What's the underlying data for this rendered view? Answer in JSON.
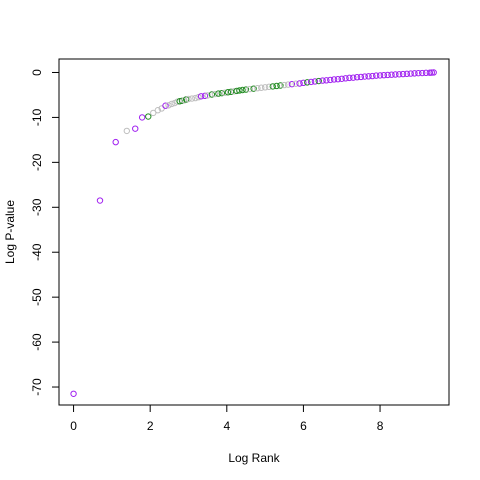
{
  "chart_data": {
    "type": "scatter",
    "title": "",
    "xlabel": "Log Rank",
    "ylabel": "Log P-value",
    "xlim": [
      -0.38,
      9.8
    ],
    "ylim": [
      -74,
      3
    ],
    "x_ticks": [
      0,
      2,
      4,
      6,
      8
    ],
    "y_ticks": [
      0,
      -10,
      -20,
      -30,
      -40,
      -50,
      -60,
      -70
    ],
    "grid": false,
    "legend": "none",
    "marker": "open-circle",
    "colors": {
      "purple": "#a020f0",
      "green": "#228b22",
      "gray": "#bebebe"
    },
    "points": [
      {
        "x": 0.0,
        "y": -71.5,
        "c": "purple"
      },
      {
        "x": 0.69,
        "y": -28.5,
        "c": "purple"
      },
      {
        "x": 1.1,
        "y": -15.5,
        "c": "purple"
      },
      {
        "x": 1.39,
        "y": -13.0,
        "c": "gray"
      },
      {
        "x": 1.61,
        "y": -12.5,
        "c": "purple"
      },
      {
        "x": 1.79,
        "y": -10.0,
        "c": "purple"
      },
      {
        "x": 1.95,
        "y": -9.8,
        "c": "green"
      },
      {
        "x": 2.08,
        "y": -9.0,
        "c": "gray"
      },
      {
        "x": 2.2,
        "y": -8.4,
        "c": "gray"
      },
      {
        "x": 2.3,
        "y": -8.0,
        "c": "gray"
      },
      {
        "x": 2.4,
        "y": -7.4,
        "c": "purple"
      },
      {
        "x": 2.48,
        "y": -7.3,
        "c": "gray"
      },
      {
        "x": 2.56,
        "y": -7.0,
        "c": "gray"
      },
      {
        "x": 2.64,
        "y": -6.8,
        "c": "gray"
      },
      {
        "x": 2.71,
        "y": -6.5,
        "c": "gray"
      },
      {
        "x": 2.77,
        "y": -6.4,
        "c": "green"
      },
      {
        "x": 2.83,
        "y": -6.3,
        "c": "green"
      },
      {
        "x": 2.89,
        "y": -6.2,
        "c": "gray"
      },
      {
        "x": 2.94,
        "y": -6.0,
        "c": "green"
      },
      {
        "x": 3.0,
        "y": -5.9,
        "c": "gray"
      },
      {
        "x": 3.09,
        "y": -5.8,
        "c": "gray"
      },
      {
        "x": 3.18,
        "y": -5.7,
        "c": "gray"
      },
      {
        "x": 3.26,
        "y": -5.5,
        "c": "gray"
      },
      {
        "x": 3.33,
        "y": -5.3,
        "c": "purple"
      },
      {
        "x": 3.43,
        "y": -5.2,
        "c": "purple"
      },
      {
        "x": 3.5,
        "y": -5.1,
        "c": "gray"
      },
      {
        "x": 3.61,
        "y": -4.9,
        "c": "green"
      },
      {
        "x": 3.69,
        "y": -4.8,
        "c": "gray"
      },
      {
        "x": 3.78,
        "y": -4.7,
        "c": "green"
      },
      {
        "x": 3.87,
        "y": -4.6,
        "c": "green"
      },
      {
        "x": 3.95,
        "y": -4.5,
        "c": "gray"
      },
      {
        "x": 4.03,
        "y": -4.4,
        "c": "green"
      },
      {
        "x": 4.11,
        "y": -4.3,
        "c": "green"
      },
      {
        "x": 4.19,
        "y": -4.2,
        "c": "gray"
      },
      {
        "x": 4.26,
        "y": -4.1,
        "c": "green"
      },
      {
        "x": 4.33,
        "y": -4.0,
        "c": "green"
      },
      {
        "x": 4.41,
        "y": -3.9,
        "c": "green"
      },
      {
        "x": 4.5,
        "y": -3.8,
        "c": "green"
      },
      {
        "x": 4.6,
        "y": -3.7,
        "c": "gray"
      },
      {
        "x": 4.7,
        "y": -3.6,
        "c": "green"
      },
      {
        "x": 4.8,
        "y": -3.5,
        "c": "gray"
      },
      {
        "x": 4.9,
        "y": -3.4,
        "c": "gray"
      },
      {
        "x": 5.0,
        "y": -3.3,
        "c": "gray"
      },
      {
        "x": 5.1,
        "y": -3.2,
        "c": "gray"
      },
      {
        "x": 5.2,
        "y": -3.1,
        "c": "green"
      },
      {
        "x": 5.3,
        "y": -3.0,
        "c": "green"
      },
      {
        "x": 5.4,
        "y": -2.9,
        "c": "green"
      },
      {
        "x": 5.5,
        "y": -2.8,
        "c": "gray"
      },
      {
        "x": 5.6,
        "y": -2.7,
        "c": "gray"
      },
      {
        "x": 5.7,
        "y": -2.6,
        "c": "purple"
      },
      {
        "x": 5.8,
        "y": -2.5,
        "c": "gray"
      },
      {
        "x": 5.9,
        "y": -2.45,
        "c": "purple"
      },
      {
        "x": 6.0,
        "y": -2.3,
        "c": "purple"
      },
      {
        "x": 6.1,
        "y": -2.2,
        "c": "green"
      },
      {
        "x": 6.2,
        "y": -2.1,
        "c": "purple"
      },
      {
        "x": 6.3,
        "y": -2.0,
        "c": "purple"
      },
      {
        "x": 6.4,
        "y": -1.9,
        "c": "green"
      },
      {
        "x": 6.5,
        "y": -1.8,
        "c": "purple"
      },
      {
        "x": 6.6,
        "y": -1.75,
        "c": "purple"
      },
      {
        "x": 6.7,
        "y": -1.65,
        "c": "purple"
      },
      {
        "x": 6.8,
        "y": -1.55,
        "c": "purple"
      },
      {
        "x": 6.9,
        "y": -1.5,
        "c": "purple"
      },
      {
        "x": 7.0,
        "y": -1.4,
        "c": "purple"
      },
      {
        "x": 7.1,
        "y": -1.3,
        "c": "purple"
      },
      {
        "x": 7.2,
        "y": -1.2,
        "c": "purple"
      },
      {
        "x": 7.3,
        "y": -1.15,
        "c": "purple"
      },
      {
        "x": 7.4,
        "y": -1.05,
        "c": "purple"
      },
      {
        "x": 7.5,
        "y": -1.0,
        "c": "purple"
      },
      {
        "x": 7.6,
        "y": -0.9,
        "c": "purple"
      },
      {
        "x": 7.7,
        "y": -0.85,
        "c": "purple"
      },
      {
        "x": 7.8,
        "y": -0.8,
        "c": "purple"
      },
      {
        "x": 7.9,
        "y": -0.7,
        "c": "purple"
      },
      {
        "x": 8.0,
        "y": -0.65,
        "c": "purple"
      },
      {
        "x": 8.1,
        "y": -0.6,
        "c": "purple"
      },
      {
        "x": 8.2,
        "y": -0.55,
        "c": "purple"
      },
      {
        "x": 8.3,
        "y": -0.5,
        "c": "purple"
      },
      {
        "x": 8.4,
        "y": -0.45,
        "c": "purple"
      },
      {
        "x": 8.5,
        "y": -0.4,
        "c": "purple"
      },
      {
        "x": 8.6,
        "y": -0.35,
        "c": "purple"
      },
      {
        "x": 8.7,
        "y": -0.3,
        "c": "purple"
      },
      {
        "x": 8.8,
        "y": -0.25,
        "c": "purple"
      },
      {
        "x": 8.9,
        "y": -0.2,
        "c": "purple"
      },
      {
        "x": 9.0,
        "y": -0.15,
        "c": "purple"
      },
      {
        "x": 9.1,
        "y": -0.12,
        "c": "purple"
      },
      {
        "x": 9.2,
        "y": -0.08,
        "c": "purple"
      },
      {
        "x": 9.3,
        "y": -0.05,
        "c": "purple"
      },
      {
        "x": 9.35,
        "y": -0.02,
        "c": "purple"
      },
      {
        "x": 9.4,
        "y": 0.0,
        "c": "purple"
      }
    ]
  }
}
